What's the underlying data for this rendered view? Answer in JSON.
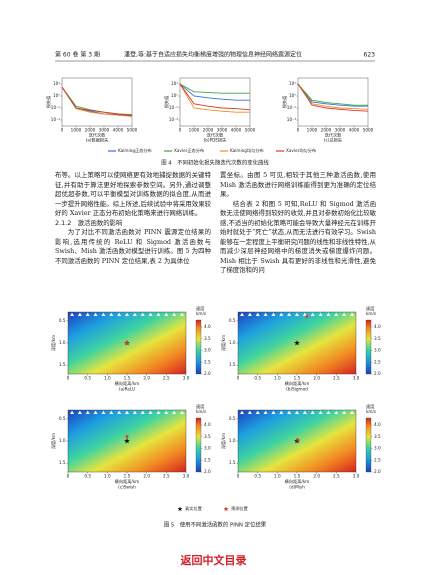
{
  "header": {
    "volume": "第 60 卷 第 3 期",
    "title": "潘登,等:基于自适应损失均衡梯度增强的物理信息神经网络震源定位",
    "page": "623"
  },
  "figure4_legend": [
    {
      "name": "Kaiming正态分布",
      "color": "#3a6fd8"
    },
    {
      "name": "Xavier正态分布",
      "color": "#3aa84a"
    },
    {
      "name": "Kaiming均匀分布",
      "color": "#f08a24"
    },
    {
      "name": "Xavier均匀分布",
      "color": "#e0352b"
    }
  ],
  "figure4_caption": "图 4　不同初始化损失随迭代次数的变化曲线",
  "figure5_legend": [
    {
      "name": "真实位置",
      "color": "#111111"
    },
    {
      "name": "预测位置",
      "color": "#e0352b"
    }
  ],
  "figure5_caption": "图 5　使用不同激活函数的 PINN 定位结果",
  "chart_data": [
    {
      "type": "line",
      "title": "(a)数据损失",
      "x_label": "迭代次数",
      "y_label": "损失值",
      "log_y": true,
      "x": [
        0,
        1000,
        2000,
        3000,
        4000,
        5000
      ],
      "xlim": [
        0,
        5000
      ],
      "xticks": [
        0,
        1000,
        2000,
        3000,
        4000,
        5000
      ],
      "ylim": [
        1e-05,
        1000
      ],
      "yticks": [
        {
          "value": 100,
          "label": "10²"
        },
        {
          "value": 1,
          "label": "10⁰"
        },
        {
          "value": 0.01,
          "label": "10⁻²"
        },
        {
          "value": 0.0001,
          "label": "10⁻⁴"
        }
      ],
      "series": [
        {
          "color": "#3a6fd8",
          "values": [
            30,
            0.01,
            0.003,
            0.001,
            0.0008,
            0.0005
          ]
        },
        {
          "color": "#3aa84a",
          "values": [
            30,
            0.02,
            0.005,
            0.002,
            0.001,
            0.0008
          ]
        },
        {
          "color": "#f08a24",
          "values": [
            30,
            0.008,
            0.002,
            0.001,
            0.0006,
            0.0004
          ]
        },
        {
          "color": "#e0352b",
          "values": [
            30,
            0.01,
            0.004,
            0.002,
            0.001,
            0.0006
          ]
        }
      ]
    },
    {
      "type": "line",
      "title": "(b)PDE损失",
      "x_label": "迭代次数",
      "y_label": "损失值",
      "log_y": true,
      "x": [
        0,
        1000,
        2000,
        3000,
        4000,
        5000
      ],
      "xlim": [
        0,
        5000
      ],
      "xticks": [
        0,
        1000,
        2000,
        3000,
        4000,
        5000
      ],
      "ylim": [
        1e-05,
        1000
      ],
      "yticks": [
        {
          "value": 100,
          "label": "10²"
        },
        {
          "value": 1,
          "label": "10⁰"
        },
        {
          "value": 0.01,
          "label": "10⁻²"
        },
        {
          "value": 0.0001,
          "label": "10⁻⁴"
        }
      ],
      "series": [
        {
          "color": "#3a6fd8",
          "values": [
            100,
            1,
            0.5,
            0.3,
            0.2,
            0.2
          ]
        },
        {
          "color": "#3aa84a",
          "values": [
            100,
            5,
            4,
            3,
            3,
            3
          ]
        },
        {
          "color": "#f08a24",
          "values": [
            100,
            0.01,
            0.005,
            0.003,
            0.002,
            0.002
          ]
        },
        {
          "color": "#e0352b",
          "values": [
            100,
            0.05,
            0.02,
            0.01,
            0.008,
            0.005
          ]
        }
      ]
    },
    {
      "type": "line",
      "title": "(c)总损失",
      "x_label": "迭代次数",
      "y_label": "损失值",
      "log_y": true,
      "x": [
        0,
        1000,
        2000,
        3000,
        4000,
        5000
      ],
      "xlim": [
        0,
        5000
      ],
      "xticks": [
        0,
        1000,
        2000,
        3000,
        4000,
        5000
      ],
      "ylim": [
        1e-05,
        1000
      ],
      "yticks": [
        {
          "value": 100,
          "label": "10²"
        },
        {
          "value": 1,
          "label": "10⁰"
        },
        {
          "value": 0.01,
          "label": "10⁻²"
        },
        {
          "value": 0.0001,
          "label": "10⁻⁴"
        }
      ],
      "series": [
        {
          "color": "#3a6fd8",
          "values": [
            100,
            0.1,
            0.05,
            0.03,
            0.02,
            0.02
          ]
        },
        {
          "color": "#3aa84a",
          "values": [
            100,
            0.2,
            0.08,
            0.05,
            0.03,
            0.03
          ]
        },
        {
          "color": "#f08a24",
          "values": [
            100,
            0.05,
            0.02,
            0.01,
            0.008,
            0.006
          ]
        },
        {
          "color": "#e0352b",
          "values": [
            100,
            0.03,
            0.01,
            0.006,
            0.004,
            0.003
          ]
        }
      ]
    },
    {
      "type": "heatmap",
      "title": "(a)ReLU",
      "x_label": "横向距离/km",
      "y_label": "深度/km",
      "xlim": [
        0,
        3
      ],
      "xticks": [
        0,
        0.5,
        {
          "value": 1,
          "label": "1.0"
        },
        1.5,
        {
          "value": 2,
          "label": "2.0"
        },
        2.5,
        {
          "value": 3,
          "label": "3.0"
        }
      ],
      "ylim": [
        0.3,
        1.7
      ],
      "yticks": [
        0.5,
        {
          "value": 1,
          "label": "1.0"
        },
        1.5
      ],
      "colorbar_title": "速度",
      "colorbar_unit": "km/s",
      "colorbar_lim": [
        2,
        4.3
      ],
      "colorbar_ticks": [
        {
          "value": 2,
          "label": "2.0"
        },
        2.5,
        {
          "value": 3,
          "label": "3.0"
        },
        3.5,
        {
          "value": 4,
          "label": "4.0"
        }
      ],
      "series": [
        {
          "color": "#111111",
          "x": [
            1.5
          ],
          "values": [
            1.0
          ]
        },
        {
          "color": "#e0352b",
          "x": [
            1.5
          ],
          "values": [
            1.0
          ]
        }
      ]
    },
    {
      "type": "heatmap",
      "title": "(b)Sigmod",
      "x_label": "横向距离/km",
      "y_label": "深度/km",
      "xlim": [
        0,
        3
      ],
      "xticks": [
        0,
        0.5,
        {
          "value": 1,
          "label": "1.0"
        },
        1.5,
        {
          "value": 2,
          "label": "2.0"
        },
        2.5,
        {
          "value": 3,
          "label": "3.0"
        }
      ],
      "ylim": [
        0.3,
        1.7
      ],
      "yticks": [
        0.5,
        {
          "value": 1,
          "label": "1.0"
        },
        1.5
      ],
      "colorbar_title": "速度",
      "colorbar_unit": "km/s",
      "colorbar_lim": [
        2,
        4.3
      ],
      "colorbar_ticks": [
        {
          "value": 2,
          "label": "2.0"
        },
        2.5,
        {
          "value": 3,
          "label": "3.0"
        },
        3.5,
        {
          "value": 4,
          "label": "4.0"
        }
      ],
      "series": [
        {
          "color": "#111111",
          "x": [
            1.5
          ],
          "values": [
            1.0
          ]
        },
        {
          "color": "#e0352b",
          "x": [
            1.75
          ],
          "values": [
            0.4
          ]
        }
      ]
    },
    {
      "type": "heatmap",
      "title": "(c)Swish",
      "x_label": "横向距离/km",
      "y_label": "深度/km",
      "xlim": [
        0,
        3
      ],
      "xticks": [
        0,
        0.5,
        {
          "value": 1,
          "label": "1.0"
        },
        1.5,
        {
          "value": 2,
          "label": "2.0"
        },
        2.5,
        {
          "value": 3,
          "label": "3.0"
        }
      ],
      "ylim": [
        0.3,
        1.7
      ],
      "yticks": [
        0.5,
        {
          "value": 1,
          "label": "1.0"
        },
        1.5
      ],
      "colorbar_title": "速度",
      "colorbar_unit": "km/s",
      "colorbar_lim": [
        2,
        4.3
      ],
      "colorbar_ticks": [
        {
          "value": 2,
          "label": "2.0"
        },
        2.5,
        {
          "value": 3,
          "label": "3.0"
        },
        3.5,
        {
          "value": 4,
          "label": "4.0"
        }
      ],
      "series": [
        {
          "color": "#111111",
          "x": [
            1.5
          ],
          "values": [
            1.0
          ]
        },
        {
          "color": "#e0352b",
          "x": [
            1.5
          ],
          "values": [
            0.9
          ]
        }
      ]
    },
    {
      "type": "heatmap",
      "title": "(d)Mish",
      "x_label": "横向距离/km",
      "y_label": "深度/km",
      "xlim": [
        0,
        3
      ],
      "xticks": [
        0,
        0.5,
        {
          "value": 1,
          "label": "1.0"
        },
        1.5,
        {
          "value": 2,
          "label": "2.0"
        },
        2.5,
        {
          "value": 3,
          "label": "3.0"
        }
      ],
      "ylim": [
        0.3,
        1.7
      ],
      "yticks": [
        0.5,
        {
          "value": 1,
          "label": "1.0"
        },
        1.5
      ],
      "colorbar_title": "速度",
      "colorbar_unit": "km/s",
      "colorbar_lim": [
        2,
        4.3
      ],
      "colorbar_ticks": [
        {
          "value": 2,
          "label": "2.0"
        },
        2.5,
        {
          "value": 3,
          "label": "3.0"
        },
        3.5,
        {
          "value": 4,
          "label": "4.0"
        }
      ],
      "series": [
        {
          "color": "#111111",
          "x": [
            1.5
          ],
          "values": [
            1.0
          ]
        },
        {
          "color": "#e0352b",
          "x": [
            1.52
          ],
          "values": [
            0.98
          ]
        }
      ]
    }
  ],
  "body": {
    "left": [
      {
        "text": "布等。以上策略可以使网络更有效地捕捉数据的关键特征,并有助于算法更好地探索参数空间。另外,通过调整超优超参数,可以平衡模型对训练数据的拟合度,从而进一步提升网络性能。综上所述,后续试验中将采用效果较好的 Xavier 正态分布初始化策略来进行网络训练。",
        "indent": false
      },
      {
        "text": "2.1.2　激活函数的影响",
        "heading": true
      },
      {
        "text": "为了对比不同激活函数对 PINN 震源定位结果的影响,选用传统的 ReLU 和 Sigmod 激活函数与 Swish、Mish 激活函数对模型进行训练。图 5 为四种不同激活函数的 PINN 定位结果,表 2 为具体位",
        "indent": true
      }
    ],
    "right": [
      {
        "text": "置坐标。由图 5 可见,相较于其他三种激活函数,使用 Mish 激活函数进行网络训练能得到更为准确的定位结果。",
        "indent": false
      },
      {
        "text": "结合表 2 和图 5 可知,ReLU 和 Sigmod 激活函数无法使网络得到较好的收敛,并且对参数初始化比较敏感,不适当的初始化策略可能会导致大量神经元在训练开始时就处于“死亡”状态,从而无法进行有效学习。Swish 能够在一定程度上平衡研究问题的线性和非线性特性,从而减少深层神经网络中的梯度消失或梯度爆炸问题。Mish 相比于 Swish 具有更好的非线性和光滑性,避免了梯度饱和的问",
        "indent": true
      }
    ]
  },
  "footer": "返回中文目录"
}
